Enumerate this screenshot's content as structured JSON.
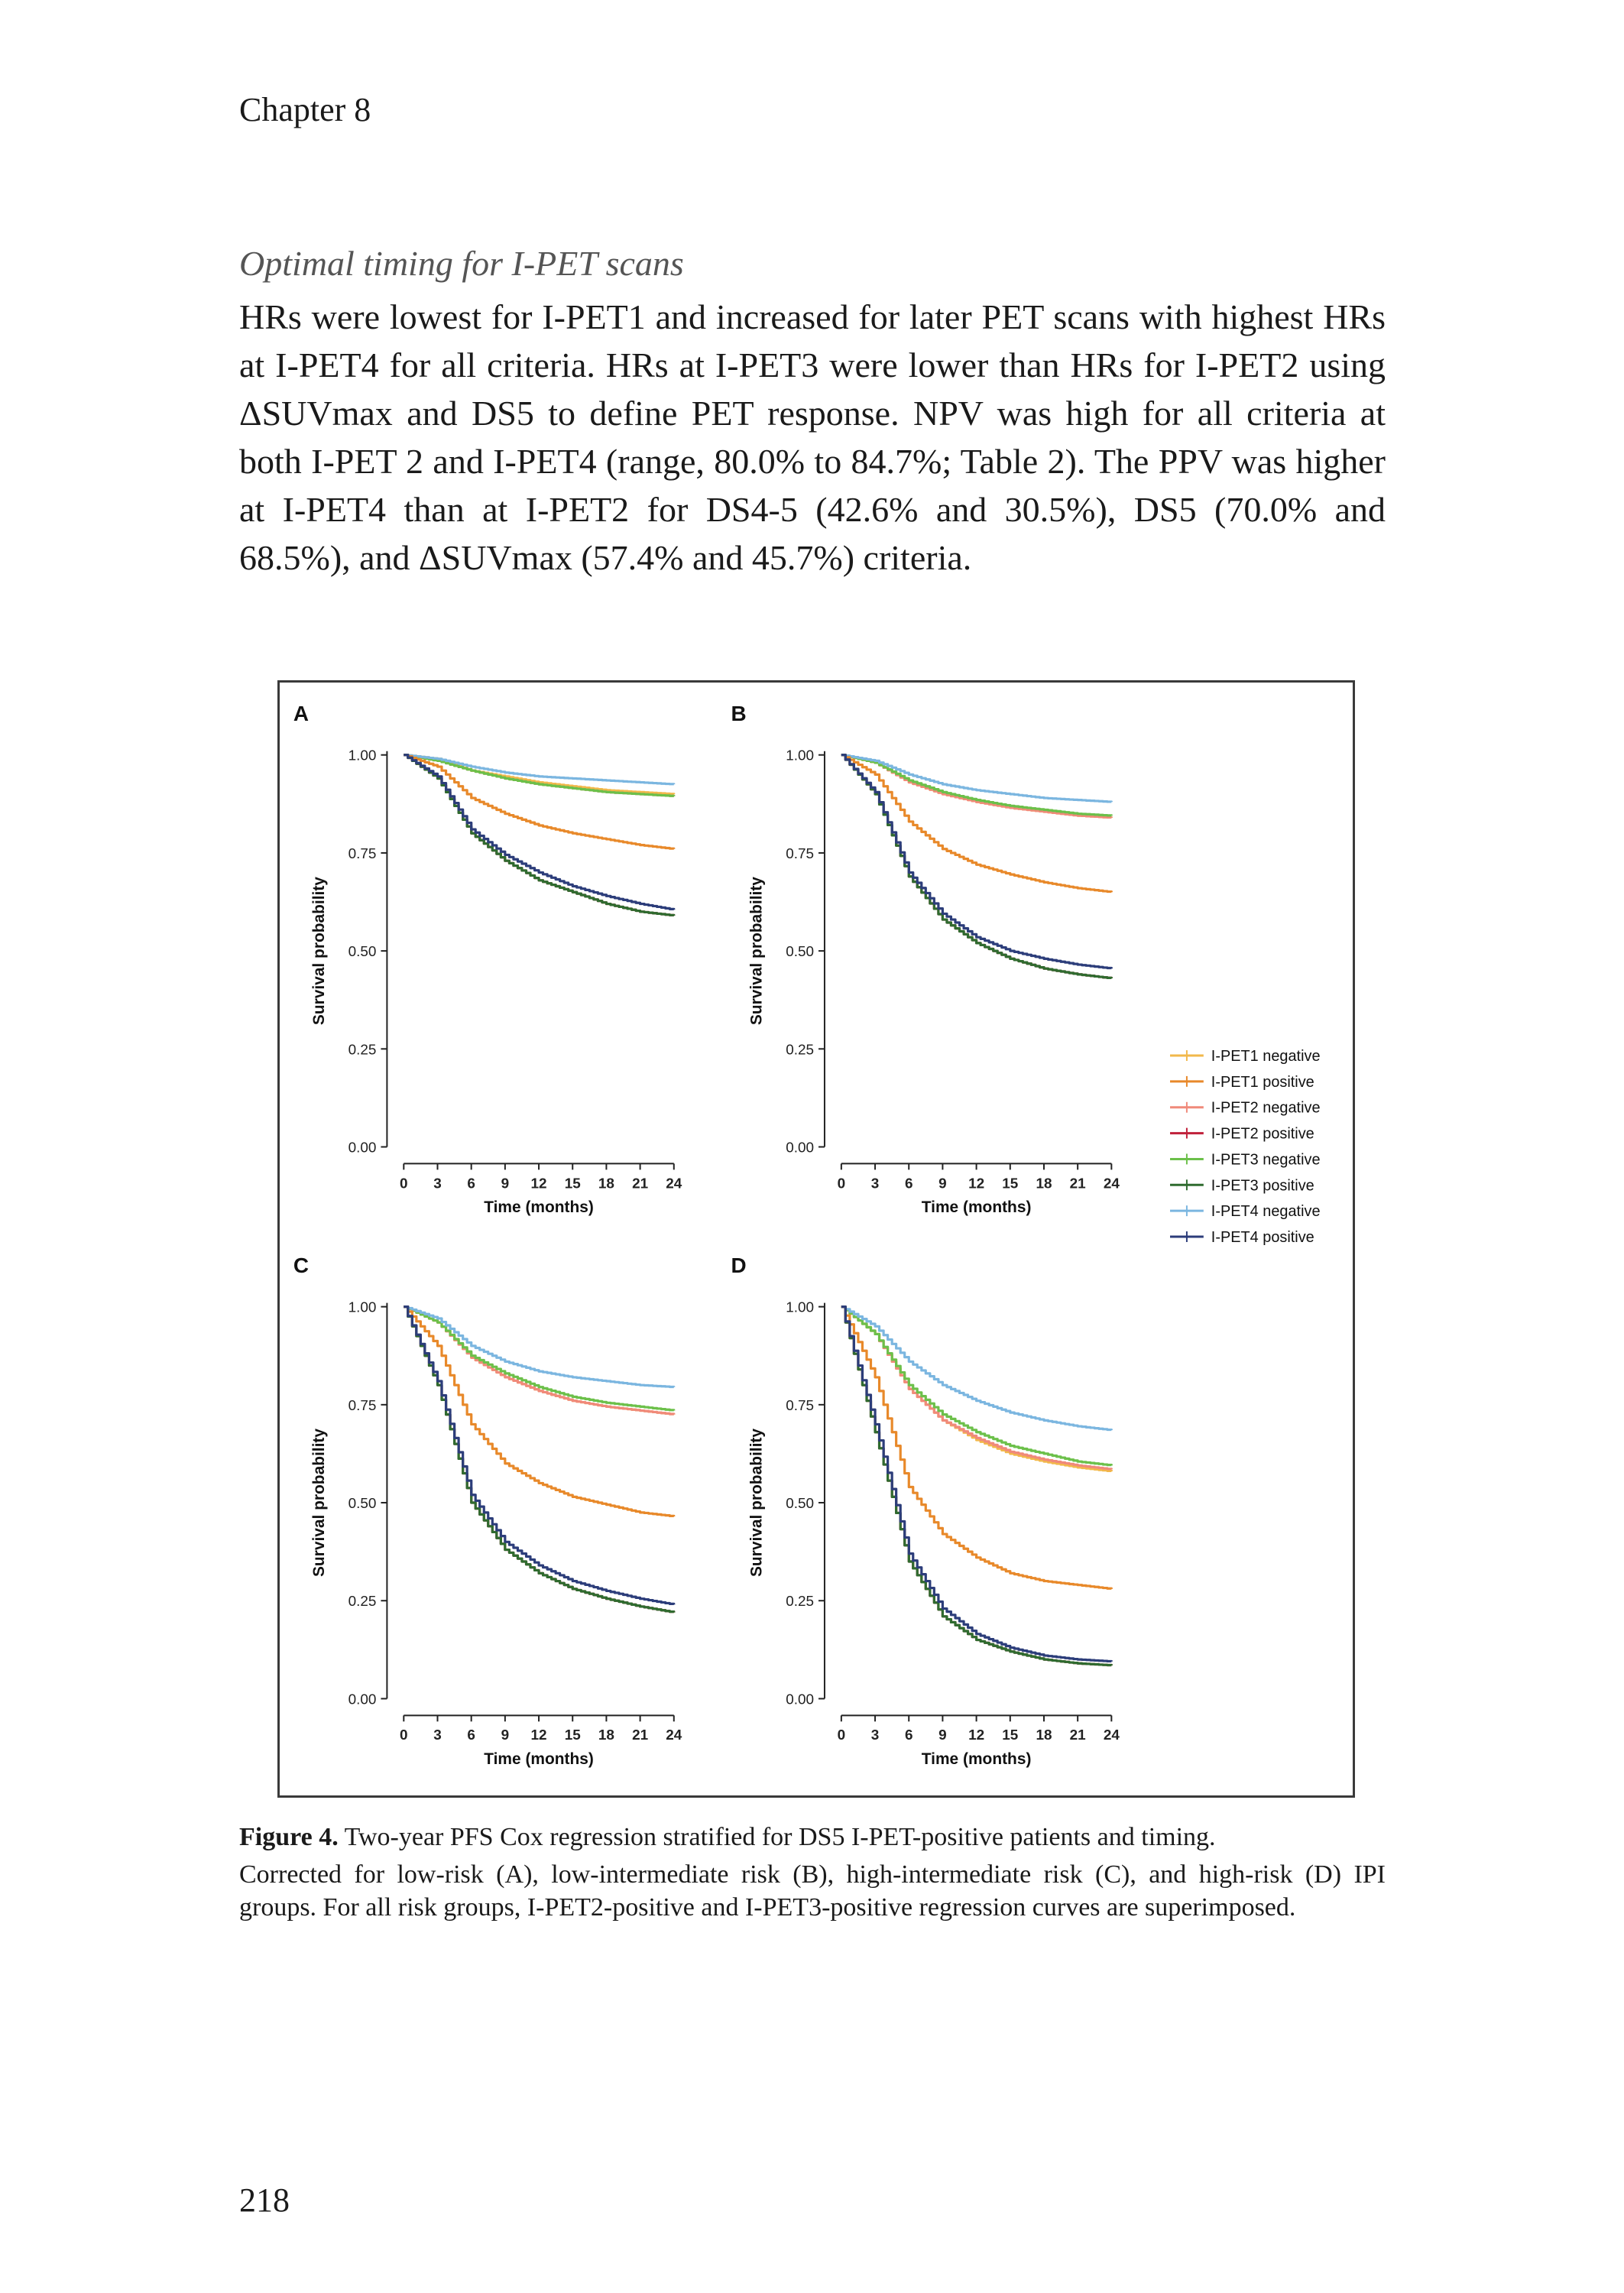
{
  "page": {
    "chapter": "Chapter 8",
    "section_heading": "Optimal timing for I-PET scans",
    "body": "HRs were lowest for I-PET1 and increased for later PET scans with highest HRs at I-PET4 for all criteria. HRs at I-PET3 were lower than HRs for I-PET2 using ΔSUVmax and DS5 to define PET response. NPV was high for all criteria at both I-PET 2 and I-PET4 (range, 80.0% to 84.7%; Table 2). The PPV was higher at I-PET4 than at I-PET2 for DS4-5 (42.6% and 30.5%), DS5 (70.0% and 68.5%), and ΔSUVmax (57.4% and 45.7%) criteria.",
    "figure_label": "Figure 4.",
    "figure_title": "Two-year PFS Cox regression stratified for DS5 I-PET-positive patients and timing.",
    "caption_text": "Corrected for low-risk (A), low-intermediate risk (B), high-intermediate risk (C), and high-risk (D) IPI groups. For all risk groups, I-PET2-positive and I-PET3-positive regression curves are superimposed.",
    "page_number": "218"
  },
  "chart_data": [
    {
      "type": "line",
      "panel": "A",
      "xlabel": "Time (months)",
      "ylabel": "Survival probability",
      "x": [
        0,
        3,
        6,
        9,
        12,
        15,
        18,
        21,
        24
      ],
      "xlim": [
        0,
        24
      ],
      "ylim": [
        0,
        1
      ],
      "yticks": [
        "0.00",
        "0.25",
        "0.50",
        "0.75",
        "1.00"
      ],
      "series": [
        {
          "name": "I-PET1 negative",
          "color": "#f2b84b",
          "values": [
            1.0,
            0.99,
            0.96,
            0.945,
            0.93,
            0.92,
            0.91,
            0.905,
            0.9
          ]
        },
        {
          "name": "I-PET1 positive",
          "color": "#e8892a",
          "values": [
            1.0,
            0.97,
            0.89,
            0.85,
            0.82,
            0.8,
            0.785,
            0.77,
            0.76
          ]
        },
        {
          "name": "I-PET2 negative",
          "color": "#f08a7a",
          "values": [
            1.0,
            0.985,
            0.96,
            0.94,
            0.925,
            0.915,
            0.905,
            0.9,
            0.895
          ]
        },
        {
          "name": "I-PET2 positive",
          "color": "#c0203a",
          "values": [
            1.0,
            0.94,
            0.8,
            0.73,
            0.68,
            0.65,
            0.62,
            0.6,
            0.59
          ]
        },
        {
          "name": "I-PET3 negative",
          "color": "#6cc04a",
          "values": [
            1.0,
            0.985,
            0.96,
            0.94,
            0.925,
            0.915,
            0.905,
            0.9,
            0.895
          ]
        },
        {
          "name": "I-PET3 positive",
          "color": "#2f6b2f",
          "values": [
            1.0,
            0.94,
            0.8,
            0.73,
            0.68,
            0.65,
            0.62,
            0.6,
            0.59
          ]
        },
        {
          "name": "I-PET4 negative",
          "color": "#7bb6e0",
          "values": [
            1.0,
            0.99,
            0.97,
            0.955,
            0.945,
            0.94,
            0.935,
            0.93,
            0.925
          ]
        },
        {
          "name": "I-PET4 positive",
          "color": "#2c3d7a",
          "values": [
            1.0,
            0.945,
            0.81,
            0.745,
            0.7,
            0.665,
            0.64,
            0.62,
            0.605
          ]
        }
      ]
    },
    {
      "type": "line",
      "panel": "B",
      "xlabel": "Time (months)",
      "ylabel": "Survival probability",
      "x": [
        0,
        3,
        6,
        9,
        12,
        15,
        18,
        21,
        24
      ],
      "xlim": [
        0,
        24
      ],
      "ylim": [
        0,
        1
      ],
      "yticks": [
        "0.00",
        "0.25",
        "0.50",
        "0.75",
        "1.00"
      ],
      "series": [
        {
          "name": "I-PET1 negative",
          "color": "#f2b84b",
          "values": [
            1.0,
            0.98,
            0.93,
            0.9,
            0.88,
            0.865,
            0.855,
            0.845,
            0.84
          ]
        },
        {
          "name": "I-PET1 positive",
          "color": "#e8892a",
          "values": [
            1.0,
            0.95,
            0.83,
            0.76,
            0.72,
            0.695,
            0.675,
            0.66,
            0.65
          ]
        },
        {
          "name": "I-PET2 negative",
          "color": "#f08a7a",
          "values": [
            1.0,
            0.98,
            0.93,
            0.9,
            0.88,
            0.865,
            0.855,
            0.845,
            0.84
          ]
        },
        {
          "name": "I-PET2 positive",
          "color": "#c0203a",
          "values": [
            1.0,
            0.9,
            0.69,
            0.58,
            0.52,
            0.48,
            0.455,
            0.44,
            0.43
          ]
        },
        {
          "name": "I-PET3 negative",
          "color": "#6cc04a",
          "values": [
            1.0,
            0.98,
            0.935,
            0.905,
            0.885,
            0.87,
            0.86,
            0.85,
            0.845
          ]
        },
        {
          "name": "I-PET3 positive",
          "color": "#2f6b2f",
          "values": [
            1.0,
            0.9,
            0.69,
            0.58,
            0.52,
            0.48,
            0.455,
            0.44,
            0.43
          ]
        },
        {
          "name": "I-PET4 negative",
          "color": "#7bb6e0",
          "values": [
            1.0,
            0.985,
            0.95,
            0.925,
            0.91,
            0.9,
            0.89,
            0.885,
            0.88
          ]
        },
        {
          "name": "I-PET4 positive",
          "color": "#2c3d7a",
          "values": [
            1.0,
            0.905,
            0.7,
            0.595,
            0.535,
            0.5,
            0.48,
            0.465,
            0.455
          ]
        }
      ]
    },
    {
      "type": "line",
      "panel": "C",
      "xlabel": "Time (months)",
      "ylabel": "Survival probability",
      "x": [
        0,
        3,
        6,
        9,
        12,
        15,
        18,
        21,
        24
      ],
      "xlim": [
        0,
        24
      ],
      "ylim": [
        0,
        1
      ],
      "yticks": [
        "0.00",
        "0.25",
        "0.50",
        "0.75",
        "1.00"
      ],
      "series": [
        {
          "name": "I-PET1 negative",
          "color": "#f2b84b",
          "values": [
            1.0,
            0.96,
            0.87,
            0.82,
            0.785,
            0.76,
            0.745,
            0.735,
            0.725
          ]
        },
        {
          "name": "I-PET1 positive",
          "color": "#e8892a",
          "values": [
            1.0,
            0.9,
            0.7,
            0.6,
            0.55,
            0.515,
            0.495,
            0.475,
            0.465
          ]
        },
        {
          "name": "I-PET2 negative",
          "color": "#f08a7a",
          "values": [
            1.0,
            0.96,
            0.87,
            0.82,
            0.785,
            0.76,
            0.745,
            0.735,
            0.725
          ]
        },
        {
          "name": "I-PET2 positive",
          "color": "#c0203a",
          "values": [
            1.0,
            0.8,
            0.5,
            0.38,
            0.32,
            0.28,
            0.255,
            0.235,
            0.22
          ]
        },
        {
          "name": "I-PET3 negative",
          "color": "#6cc04a",
          "values": [
            1.0,
            0.96,
            0.875,
            0.83,
            0.795,
            0.77,
            0.755,
            0.745,
            0.735
          ]
        },
        {
          "name": "I-PET3 positive",
          "color": "#2f6b2f",
          "values": [
            1.0,
            0.8,
            0.5,
            0.38,
            0.32,
            0.28,
            0.255,
            0.235,
            0.22
          ]
        },
        {
          "name": "I-PET4 negative",
          "color": "#7bb6e0",
          "values": [
            1.0,
            0.97,
            0.9,
            0.86,
            0.835,
            0.82,
            0.81,
            0.8,
            0.795
          ]
        },
        {
          "name": "I-PET4 positive",
          "color": "#2c3d7a",
          "values": [
            1.0,
            0.81,
            0.52,
            0.4,
            0.34,
            0.3,
            0.275,
            0.255,
            0.24
          ]
        }
      ]
    },
    {
      "type": "line",
      "panel": "D",
      "xlabel": "Time (months)",
      "ylabel": "Survival probability",
      "x": [
        0,
        3,
        6,
        9,
        12,
        15,
        18,
        21,
        24
      ],
      "xlim": [
        0,
        24
      ],
      "ylim": [
        0,
        1
      ],
      "yticks": [
        "0.00",
        "0.25",
        "0.50",
        "0.75",
        "1.00"
      ],
      "series": [
        {
          "name": "I-PET1 negative",
          "color": "#f2b84b",
          "values": [
            1.0,
            0.93,
            0.79,
            0.71,
            0.66,
            0.625,
            0.605,
            0.59,
            0.58
          ]
        },
        {
          "name": "I-PET1 positive",
          "color": "#e8892a",
          "values": [
            1.0,
            0.82,
            0.54,
            0.42,
            0.36,
            0.32,
            0.3,
            0.29,
            0.28
          ]
        },
        {
          "name": "I-PET2 negative",
          "color": "#f08a7a",
          "values": [
            1.0,
            0.93,
            0.79,
            0.71,
            0.665,
            0.63,
            0.61,
            0.595,
            0.585
          ]
        },
        {
          "name": "I-PET2 positive",
          "color": "#c0203a",
          "values": [
            1.0,
            0.68,
            0.35,
            0.21,
            0.15,
            0.12,
            0.1,
            0.09,
            0.085
          ]
        },
        {
          "name": "I-PET3 negative",
          "color": "#6cc04a",
          "values": [
            1.0,
            0.93,
            0.8,
            0.725,
            0.68,
            0.645,
            0.625,
            0.605,
            0.595
          ]
        },
        {
          "name": "I-PET3 positive",
          "color": "#2f6b2f",
          "values": [
            1.0,
            0.68,
            0.35,
            0.21,
            0.15,
            0.12,
            0.1,
            0.09,
            0.085
          ]
        },
        {
          "name": "I-PET4 negative",
          "color": "#7bb6e0",
          "values": [
            1.0,
            0.95,
            0.86,
            0.8,
            0.76,
            0.73,
            0.71,
            0.695,
            0.685
          ]
        },
        {
          "name": "I-PET4 positive",
          "color": "#2c3d7a",
          "values": [
            1.0,
            0.7,
            0.37,
            0.23,
            0.165,
            0.13,
            0.11,
            0.1,
            0.095
          ]
        }
      ]
    }
  ]
}
